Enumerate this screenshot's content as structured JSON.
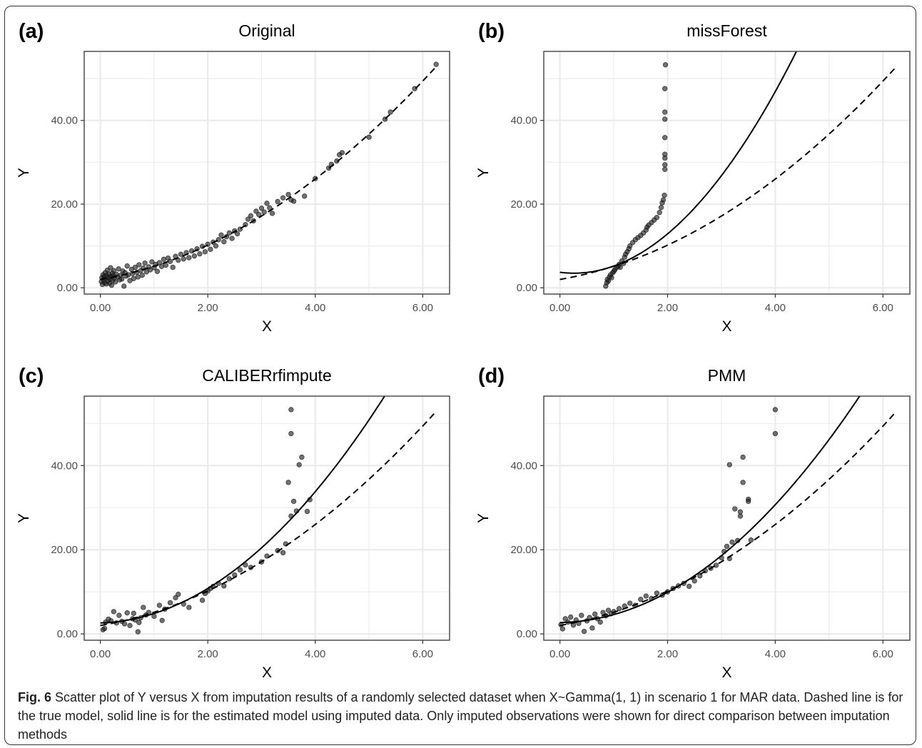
{
  "caption": {
    "label": "Fig. 6",
    "text": "Scatter plot of Y versus X from imputation results of a randomly selected dataset when X~Gamma(1, 1) in scenario 1 for MAR data. Dashed line is for the true model, solid line is for the estimated model using imputed data. Only imputed observations were shown for direct comparison between imputation methods"
  },
  "colors": {
    "points": "#1a1a1a",
    "grid": "#ebebeb",
    "panel_border": "#333333",
    "lines": "#000000"
  },
  "chart_data": [
    {
      "type": "scatter",
      "label": "(a)",
      "title": "Original",
      "xlabel": "X",
      "ylabel": "Y",
      "xlim": [
        -0.3,
        6.5
      ],
      "ylim": [
        -1.5,
        56.5
      ],
      "xticks": [
        0,
        2,
        4,
        6
      ],
      "xtick_labels": [
        "0.00",
        "2.00",
        "4.00",
        "6.00"
      ],
      "yticks": [
        0,
        20,
        40
      ],
      "ytick_labels": [
        "0.00",
        "20.00",
        "40.00"
      ],
      "true_curve": {
        "style": "dashed",
        "a": 2.0,
        "b": 2.2,
        "c": 0.95
      },
      "estimated_curve": null,
      "points": [
        [
          0.02,
          1.5
        ],
        [
          0.03,
          2.4
        ],
        [
          0.04,
          0.8
        ],
        [
          0.05,
          3.1
        ],
        [
          0.06,
          1.9
        ],
        [
          0.07,
          2.7
        ],
        [
          0.08,
          1.2
        ],
        [
          0.09,
          3.6
        ],
        [
          0.1,
          2.2
        ],
        [
          0.11,
          0.9
        ],
        [
          0.12,
          2.9
        ],
        [
          0.13,
          4.2
        ],
        [
          0.14,
          1.6
        ],
        [
          0.15,
          2.5
        ],
        [
          0.16,
          3.3
        ],
        [
          0.17,
          1.1
        ],
        [
          0.18,
          2.0
        ],
        [
          0.19,
          4.8
        ],
        [
          0.2,
          2.7
        ],
        [
          0.21,
          0.6
        ],
        [
          0.22,
          3.5
        ],
        [
          0.23,
          1.8
        ],
        [
          0.24,
          2.9
        ],
        [
          0.25,
          4.1
        ],
        [
          0.26,
          2.3
        ],
        [
          0.28,
          1.4
        ],
        [
          0.3,
          3.2
        ],
        [
          0.32,
          2.6
        ],
        [
          0.34,
          4.5
        ],
        [
          0.36,
          1.9
        ],
        [
          0.38,
          3.0
        ],
        [
          0.4,
          2.1
        ],
        [
          0.42,
          4.0
        ],
        [
          0.44,
          0.4
        ],
        [
          0.46,
          3.6
        ],
        [
          0.48,
          2.8
        ],
        [
          0.5,
          5.2
        ],
        [
          0.52,
          3.1
        ],
        [
          0.55,
          1.7
        ],
        [
          0.58,
          4.4
        ],
        [
          0.6,
          3.4
        ],
        [
          0.62,
          2.2
        ],
        [
          0.65,
          4.9
        ],
        [
          0.68,
          3.7
        ],
        [
          0.7,
          2.6
        ],
        [
          0.72,
          5.5
        ],
        [
          0.75,
          4.1
        ],
        [
          0.78,
          3.0
        ],
        [
          0.8,
          4.7
        ],
        [
          0.83,
          5.9
        ],
        [
          0.86,
          3.8
        ],
        [
          0.9,
          5.0
        ],
        [
          0.93,
          4.3
        ],
        [
          0.96,
          6.2
        ],
        [
          1.0,
          4.8
        ],
        [
          1.03,
          5.6
        ],
        [
          1.06,
          3.9
        ],
        [
          1.1,
          6.0
        ],
        [
          1.14,
          5.1
        ],
        [
          1.18,
          6.8
        ],
        [
          1.22,
          5.4
        ],
        [
          1.26,
          7.1
        ],
        [
          1.3,
          6.3
        ],
        [
          1.35,
          4.9
        ],
        [
          1.4,
          7.5
        ],
        [
          1.45,
          6.6
        ],
        [
          1.5,
          8.0
        ],
        [
          1.55,
          6.9
        ],
        [
          1.6,
          8.4
        ],
        [
          1.65,
          7.2
        ],
        [
          1.7,
          8.8
        ],
        [
          1.75,
          7.6
        ],
        [
          1.8,
          9.3
        ],
        [
          1.85,
          8.1
        ],
        [
          1.9,
          9.9
        ],
        [
          1.95,
          8.6
        ],
        [
          2.0,
          10.4
        ],
        [
          2.05,
          9.2
        ],
        [
          2.1,
          10.9
        ],
        [
          2.15,
          10.0
        ],
        [
          2.2,
          11.5
        ],
        [
          2.25,
          12.6
        ],
        [
          2.3,
          11.0
        ],
        [
          2.35,
          12.2
        ],
        [
          2.4,
          13.1
        ],
        [
          2.45,
          11.8
        ],
        [
          2.5,
          13.6
        ],
        [
          2.55,
          12.9
        ],
        [
          2.6,
          14.0
        ],
        [
          2.7,
          15.1
        ],
        [
          2.75,
          16.4
        ],
        [
          2.8,
          17.2
        ],
        [
          2.85,
          16.0
        ],
        [
          2.9,
          18.3
        ],
        [
          2.95,
          17.5
        ],
        [
          3.0,
          19.0
        ],
        [
          3.05,
          18.1
        ],
        [
          3.1,
          20.2
        ],
        [
          3.15,
          19.1
        ],
        [
          3.2,
          17.8
        ],
        [
          3.3,
          20.6
        ],
        [
          3.4,
          21.5
        ],
        [
          3.5,
          22.3
        ],
        [
          3.55,
          21.0
        ],
        [
          3.6,
          20.7
        ],
        [
          3.8,
          21.9
        ],
        [
          4.0,
          26.1
        ],
        [
          4.25,
          28.6
        ],
        [
          4.3,
          29.5
        ],
        [
          4.4,
          30.3
        ],
        [
          4.45,
          31.8
        ],
        [
          4.5,
          32.3
        ],
        [
          5.0,
          36.0
        ],
        [
          5.3,
          40.3
        ],
        [
          5.4,
          42.0
        ],
        [
          5.85,
          47.6
        ],
        [
          6.25,
          53.4
        ]
      ]
    },
    {
      "type": "scatter",
      "label": "(b)",
      "title": "missForest",
      "xlabel": "X",
      "ylabel": "Y",
      "xlim": [
        -0.3,
        6.5
      ],
      "ylim": [
        -1.5,
        56.5
      ],
      "xticks": [
        0,
        2,
        4,
        6
      ],
      "xtick_labels": [
        "0.00",
        "2.00",
        "4.00",
        "6.00"
      ],
      "yticks": [
        0,
        20,
        40
      ],
      "ytick_labels": [
        "0.00",
        "20.00",
        "40.00"
      ],
      "true_curve": {
        "style": "dashed",
        "a": 2.0,
        "b": 2.2,
        "c": 0.95
      },
      "estimated_curve": {
        "style": "solid",
        "a": 3.7,
        "b": -1.6,
        "c": 3.1
      },
      "points": [
        [
          0.85,
          0.4
        ],
        [
          0.87,
          1.2
        ],
        [
          0.88,
          2.0
        ],
        [
          0.9,
          1.6
        ],
        [
          0.92,
          2.6
        ],
        [
          0.94,
          3.1
        ],
        [
          0.96,
          2.4
        ],
        [
          0.98,
          3.6
        ],
        [
          1.0,
          3.9
        ],
        [
          1.02,
          4.3
        ],
        [
          1.05,
          4.8
        ],
        [
          1.08,
          5.1
        ],
        [
          1.1,
          5.6
        ],
        [
          1.12,
          4.9
        ],
        [
          1.15,
          6.4
        ],
        [
          1.18,
          5.8
        ],
        [
          1.2,
          7.3
        ],
        [
          1.22,
          8.0
        ],
        [
          1.25,
          8.6
        ],
        [
          1.28,
          9.3
        ],
        [
          1.3,
          10.0
        ],
        [
          1.35,
          10.8
        ],
        [
          1.4,
          11.5
        ],
        [
          1.45,
          12.0
        ],
        [
          1.5,
          12.5
        ],
        [
          1.55,
          13.1
        ],
        [
          1.6,
          13.8
        ],
        [
          1.62,
          14.5
        ],
        [
          1.65,
          15.0
        ],
        [
          1.7,
          15.6
        ],
        [
          1.75,
          16.2
        ],
        [
          1.8,
          16.8
        ],
        [
          1.85,
          18.0
        ],
        [
          1.88,
          19.2
        ],
        [
          1.9,
          20.3
        ],
        [
          1.92,
          21.0
        ],
        [
          1.94,
          22.1
        ],
        [
          1.95,
          28.3
        ],
        [
          1.95,
          29.4
        ],
        [
          1.95,
          31.0
        ],
        [
          1.95,
          31.9
        ],
        [
          1.95,
          35.9
        ],
        [
          1.95,
          40.3
        ],
        [
          1.95,
          42.0
        ],
        [
          1.95,
          47.6
        ],
        [
          1.96,
          53.3
        ]
      ]
    },
    {
      "type": "scatter",
      "label": "(c)",
      "title": "CALIBERrfimpute",
      "xlabel": "X",
      "ylabel": "Y",
      "xlim": [
        -0.3,
        6.5
      ],
      "ylim": [
        -1.5,
        56.5
      ],
      "xticks": [
        0,
        2,
        4,
        6
      ],
      "xtick_labels": [
        "0.00",
        "2.00",
        "4.00",
        "6.00"
      ],
      "yticks": [
        0,
        20,
        40
      ],
      "ytick_labels": [
        "0.00",
        "20.00",
        "40.00"
      ],
      "true_curve": {
        "style": "dashed",
        "a": 2.0,
        "b": 2.2,
        "c": 0.95
      },
      "estimated_curve": {
        "style": "solid",
        "a": 2.6,
        "b": 0.4,
        "c": 1.85
      },
      "points": [
        [
          0.05,
          1.0
        ],
        [
          0.08,
          1.3
        ],
        [
          0.1,
          2.8
        ],
        [
          0.15,
          3.5
        ],
        [
          0.2,
          3.1
        ],
        [
          0.25,
          5.3
        ],
        [
          0.3,
          2.6
        ],
        [
          0.35,
          4.4
        ],
        [
          0.4,
          3.0
        ],
        [
          0.45,
          2.4
        ],
        [
          0.5,
          5.0
        ],
        [
          0.55,
          2.0
        ],
        [
          0.6,
          3.6
        ],
        [
          0.62,
          4.9
        ],
        [
          0.65,
          3.3
        ],
        [
          0.7,
          0.5
        ],
        [
          0.72,
          2.7
        ],
        [
          0.75,
          3.8
        ],
        [
          0.8,
          6.3
        ],
        [
          0.85,
          4.5
        ],
        [
          0.9,
          5.1
        ],
        [
          1.0,
          4.2
        ],
        [
          1.1,
          6.8
        ],
        [
          1.15,
          3.2
        ],
        [
          1.2,
          5.9
        ],
        [
          1.3,
          7.4
        ],
        [
          1.4,
          8.6
        ],
        [
          1.45,
          9.4
        ],
        [
          1.55,
          7.1
        ],
        [
          1.65,
          6.3
        ],
        [
          1.9,
          8.0
        ],
        [
          1.95,
          9.6
        ],
        [
          2.0,
          10.2
        ],
        [
          2.05,
          10.8
        ],
        [
          2.1,
          11.3
        ],
        [
          2.2,
          12.0
        ],
        [
          2.3,
          11.4
        ],
        [
          2.4,
          13.1
        ],
        [
          2.5,
          14.0
        ],
        [
          2.6,
          15.2
        ],
        [
          2.7,
          16.4
        ],
        [
          2.8,
          15.8
        ],
        [
          3.0,
          17.1
        ],
        [
          3.1,
          18.5
        ],
        [
          3.3,
          19.8
        ],
        [
          3.4,
          19.3
        ],
        [
          3.45,
          21.4
        ],
        [
          3.5,
          36.0
        ],
        [
          3.55,
          28.0
        ],
        [
          3.6,
          31.5
        ],
        [
          3.65,
          29.2
        ],
        [
          3.7,
          40.2
        ],
        [
          3.75,
          42.0
        ],
        [
          3.85,
          29.1
        ],
        [
          3.9,
          31.9
        ],
        [
          3.55,
          47.6
        ],
        [
          3.55,
          53.3
        ]
      ]
    },
    {
      "type": "scatter",
      "label": "(d)",
      "title": "PMM",
      "xlabel": "X",
      "ylabel": "Y",
      "xlim": [
        -0.3,
        6.5
      ],
      "ylim": [
        -1.5,
        56.5
      ],
      "xticks": [
        0,
        2,
        4,
        6
      ],
      "xtick_labels": [
        "0.00",
        "2.00",
        "4.00",
        "6.00"
      ],
      "yticks": [
        0,
        20,
        40
      ],
      "ytick_labels": [
        "0.00",
        "20.00",
        "40.00"
      ],
      "true_curve": {
        "style": "dashed",
        "a": 2.0,
        "b": 2.2,
        "c": 0.95
      },
      "estimated_curve": {
        "style": "solid",
        "a": 2.7,
        "b": 0.2,
        "c": 1.7
      },
      "points": [
        [
          0.02,
          2.2
        ],
        [
          0.05,
          1.2
        ],
        [
          0.1,
          3.6
        ],
        [
          0.15,
          2.8
        ],
        [
          0.2,
          4.0
        ],
        [
          0.25,
          2.1
        ],
        [
          0.3,
          3.3
        ],
        [
          0.35,
          2.5
        ],
        [
          0.4,
          4.4
        ],
        [
          0.45,
          0.6
        ],
        [
          0.5,
          3.1
        ],
        [
          0.55,
          3.9
        ],
        [
          0.6,
          1.4
        ],
        [
          0.65,
          4.7
        ],
        [
          0.7,
          3.6
        ],
        [
          0.75,
          2.8
        ],
        [
          0.8,
          5.1
        ],
        [
          0.85,
          4.3
        ],
        [
          0.9,
          5.6
        ],
        [
          0.95,
          4.8
        ],
        [
          1.0,
          5.3
        ],
        [
          1.1,
          6.0
        ],
        [
          1.2,
          6.6
        ],
        [
          1.3,
          7.3
        ],
        [
          1.4,
          6.8
        ],
        [
          1.5,
          8.2
        ],
        [
          1.6,
          9.0
        ],
        [
          1.7,
          8.4
        ],
        [
          1.8,
          9.7
        ],
        [
          1.9,
          9.2
        ],
        [
          2.0,
          10.0
        ],
        [
          2.1,
          10.8
        ],
        [
          2.2,
          11.4
        ],
        [
          2.3,
          12.0
        ],
        [
          2.4,
          11.3
        ],
        [
          2.5,
          12.6
        ],
        [
          2.6,
          13.8
        ],
        [
          2.7,
          15.0
        ],
        [
          2.8,
          15.6
        ],
        [
          2.9,
          16.3
        ],
        [
          3.0,
          18.1
        ],
        [
          3.05,
          19.6
        ],
        [
          3.1,
          20.8
        ],
        [
          3.15,
          17.9
        ],
        [
          3.2,
          21.8
        ],
        [
          3.25,
          29.7
        ],
        [
          3.3,
          22.2
        ],
        [
          3.35,
          28.0
        ],
        [
          3.35,
          29.0
        ],
        [
          3.4,
          36.0
        ],
        [
          3.4,
          42.0
        ],
        [
          3.5,
          31.5
        ],
        [
          3.5,
          32.0
        ],
        [
          3.55,
          22.3
        ],
        [
          3.15,
          40.2
        ],
        [
          4.0,
          47.6
        ],
        [
          4.0,
          53.3
        ]
      ]
    }
  ]
}
